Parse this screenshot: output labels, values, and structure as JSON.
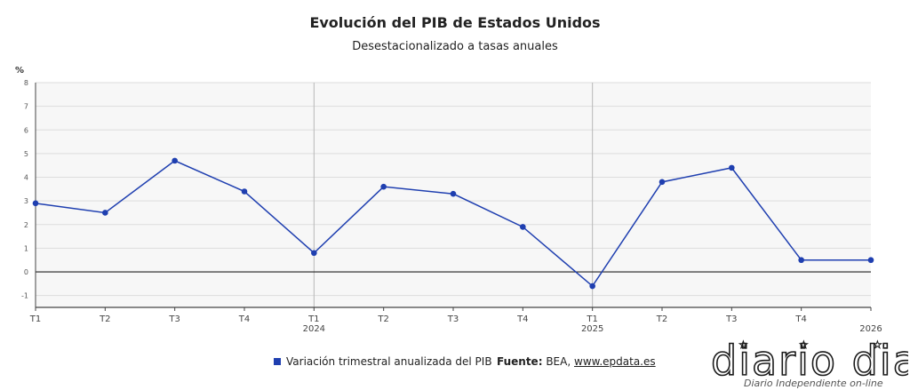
{
  "chart_data": {
    "type": "line",
    "title": "Evolución del PIB de Estados Unidos",
    "subtitle": "Desestacionalizado a tasas anuales",
    "ylabel": "%",
    "ylim": [
      -1.5,
      8
    ],
    "yticks": [
      -1,
      0,
      1,
      2,
      3,
      4,
      5,
      6,
      7,
      8
    ],
    "grid": true,
    "legend_position": "bottom",
    "categories": [
      "T1",
      "T2",
      "T3",
      "T4",
      "T1",
      "T2",
      "T3",
      "T4",
      "T1",
      "T2",
      "T3",
      "T4",
      ""
    ],
    "year_labels": [
      {
        "index": 4,
        "label": "2024"
      },
      {
        "index": 8,
        "label": "2025"
      },
      {
        "index": 12,
        "label": "2026"
      }
    ],
    "series": [
      {
        "name": "Variación trimestral anualizada del PIB",
        "color": "#1f3fb0",
        "values": [
          2.9,
          2.5,
          4.7,
          3.4,
          0.8,
          3.6,
          3.3,
          1.9,
          -0.6,
          3.8,
          4.4,
          0.5,
          0.5
        ]
      }
    ]
  },
  "source": {
    "label": "Fuente:",
    "text": "BEA,",
    "link": "www.epdata.es"
  },
  "watermark": {
    "logo_text": "diario dia",
    "tagline": "Diario Independiente on-line"
  }
}
